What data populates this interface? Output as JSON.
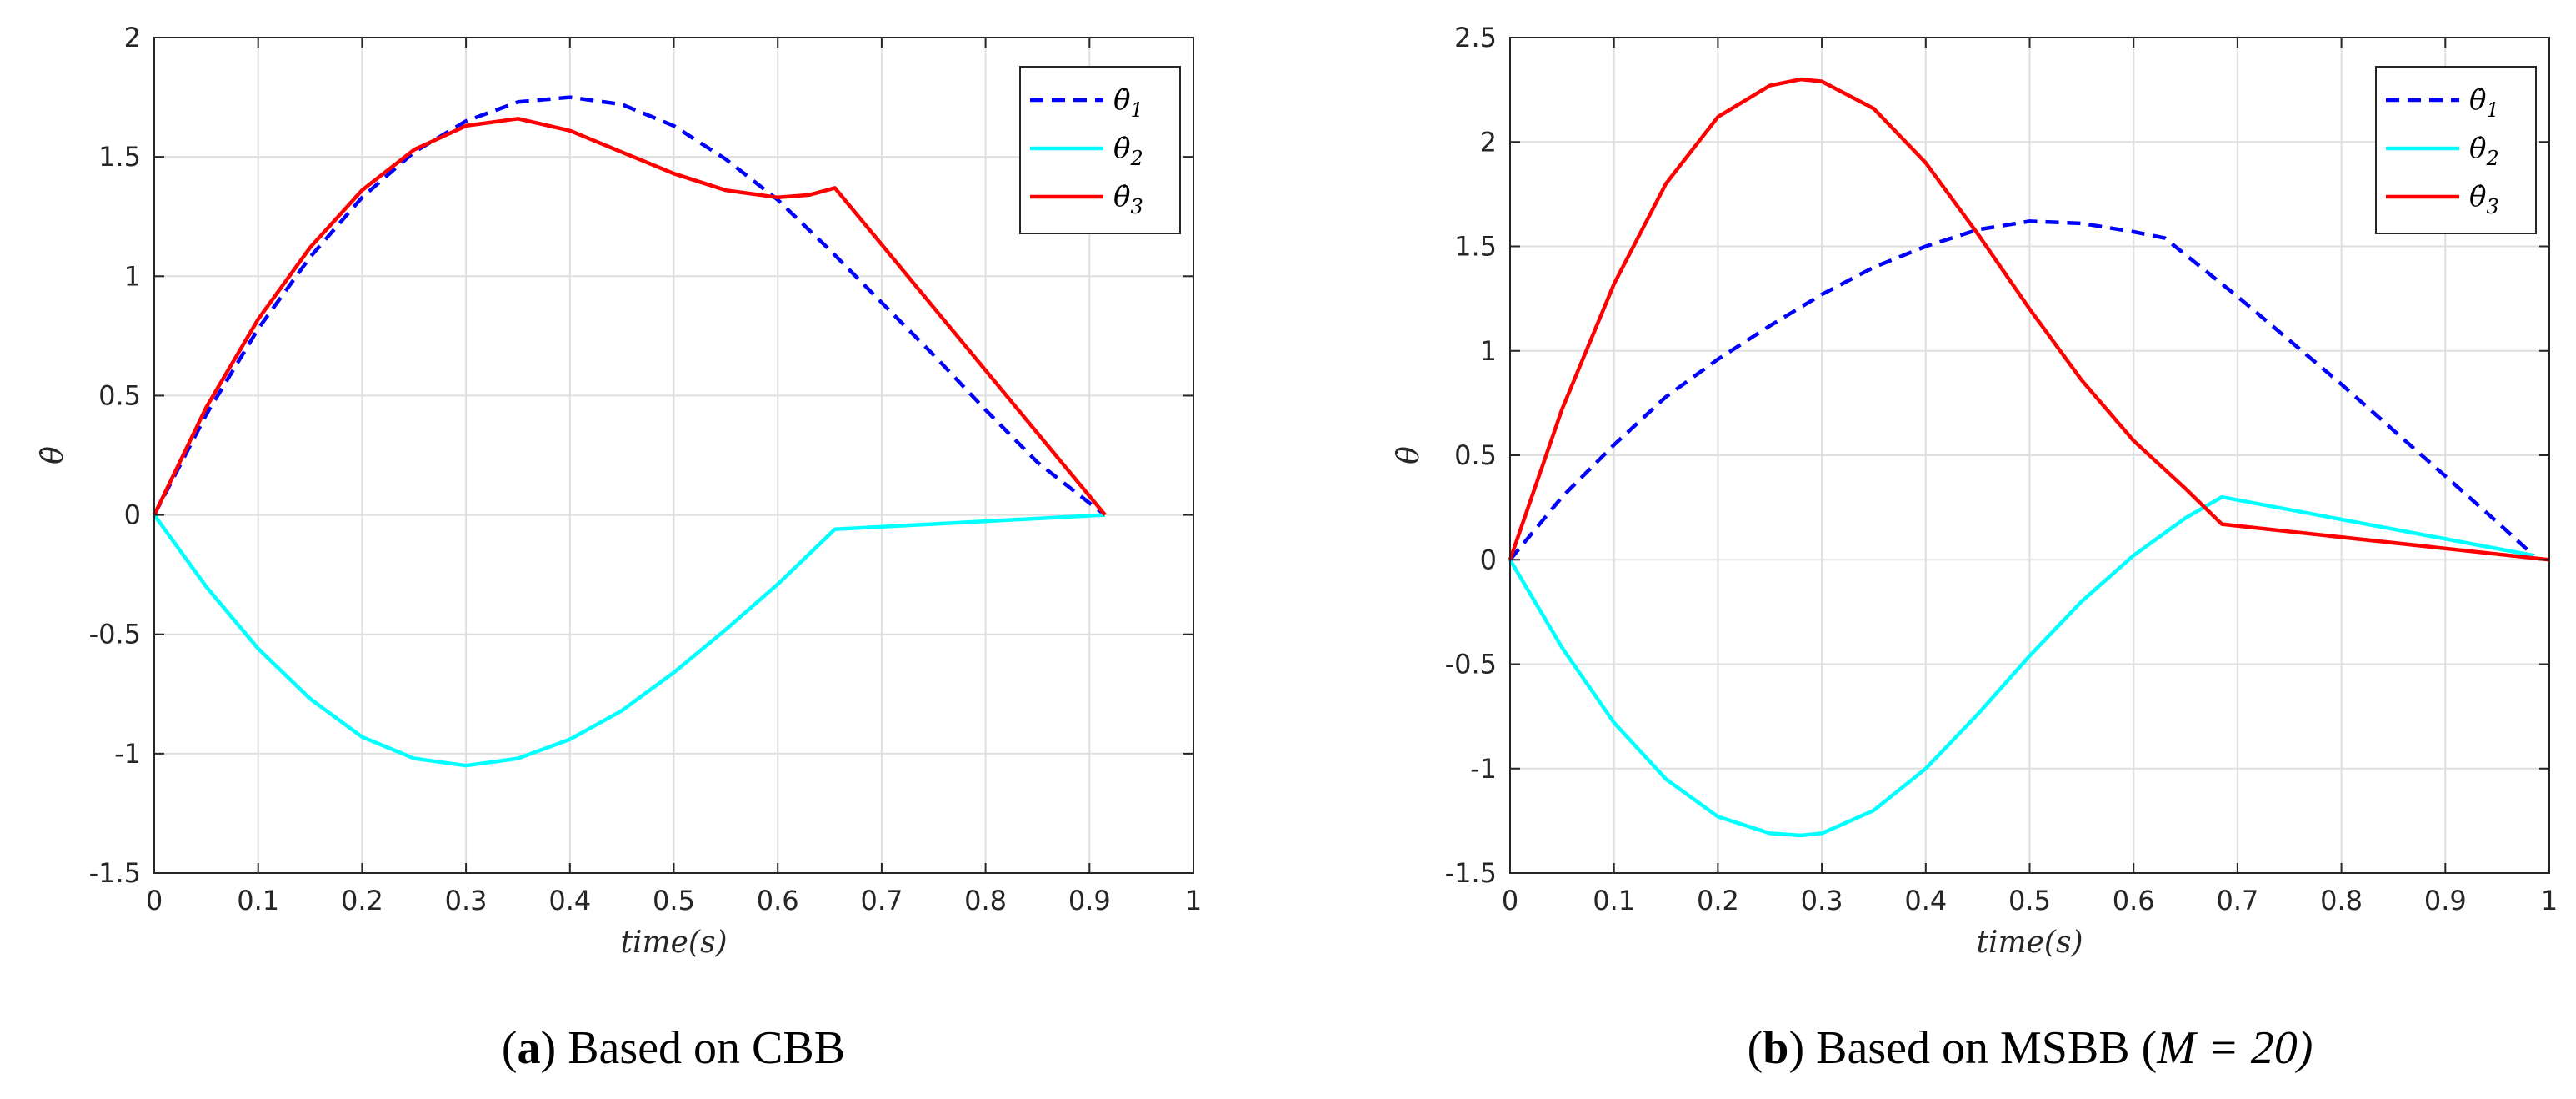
{
  "chart_data": [
    {
      "type": "line",
      "panel_label": "a",
      "caption": "Based on CBB",
      "caption_suffix": "",
      "xlabel": "time(s)",
      "ylabel": "θ̇",
      "xlim": [
        0,
        1
      ],
      "ylim": [
        -1.5,
        2
      ],
      "xticks": [
        0,
        0.1,
        0.2,
        0.3,
        0.4,
        0.5,
        0.6,
        0.7,
        0.8,
        0.9,
        1
      ],
      "xtick_labels": [
        "0",
        "0.1",
        "0.2",
        "0.3",
        "0.4",
        "0.5",
        "0.6",
        "0.7",
        "0.8",
        "0.9",
        "1"
      ],
      "yticks": [
        -1.5,
        -1,
        -0.5,
        0,
        0.5,
        1,
        1.5,
        2
      ],
      "ytick_labels": [
        "-1.5",
        "-1",
        "-0.5",
        "0",
        "0.5",
        "1",
        "1.5",
        "2"
      ],
      "grid": true,
      "legend_position": "top-right",
      "series": [
        {
          "name": "θ̇1",
          "sub": "1",
          "color": "#0000ff",
          "style": "dashed",
          "x": [
            0,
            0.05,
            0.1,
            0.15,
            0.2,
            0.25,
            0.3,
            0.35,
            0.4,
            0.45,
            0.5,
            0.55,
            0.6,
            0.65,
            0.7,
            0.75,
            0.8,
            0.85,
            0.9,
            0.915
          ],
          "y": [
            0,
            0.42,
            0.78,
            1.08,
            1.33,
            1.52,
            1.65,
            1.73,
            1.75,
            1.72,
            1.63,
            1.49,
            1.32,
            1.11,
            0.89,
            0.67,
            0.44,
            0.22,
            0.05,
            0
          ]
        },
        {
          "name": "θ̇2",
          "sub": "2",
          "color": "#00ffff",
          "style": "solid",
          "x": [
            0,
            0.05,
            0.1,
            0.15,
            0.2,
            0.25,
            0.3,
            0.35,
            0.4,
            0.45,
            0.5,
            0.55,
            0.6,
            0.655,
            0.915
          ],
          "y": [
            0,
            -0.3,
            -0.56,
            -0.77,
            -0.93,
            -1.02,
            -1.05,
            -1.02,
            -0.94,
            -0.82,
            -0.66,
            -0.48,
            -0.29,
            -0.06,
            0
          ]
        },
        {
          "name": "θ̇3",
          "sub": "3",
          "color": "#ff0000",
          "style": "solid",
          "x": [
            0,
            0.05,
            0.1,
            0.15,
            0.2,
            0.25,
            0.3,
            0.35,
            0.4,
            0.45,
            0.5,
            0.55,
            0.6,
            0.63,
            0.655,
            0.915
          ],
          "y": [
            0,
            0.45,
            0.82,
            1.12,
            1.36,
            1.53,
            1.63,
            1.66,
            1.61,
            1.52,
            1.43,
            1.36,
            1.33,
            1.34,
            1.37,
            0
          ]
        }
      ]
    },
    {
      "type": "line",
      "panel_label": "b",
      "caption": "Based on MSBB (",
      "caption_suffix": "M = 20)",
      "xlabel": "time(s)",
      "ylabel": "θ̇",
      "xlim": [
        0,
        1
      ],
      "ylim": [
        -1.5,
        2.5
      ],
      "xticks": [
        0,
        0.1,
        0.2,
        0.3,
        0.4,
        0.5,
        0.6,
        0.7,
        0.8,
        0.9,
        1
      ],
      "xtick_labels": [
        "0",
        "0.1",
        "0.2",
        "0.3",
        "0.4",
        "0.5",
        "0.6",
        "0.7",
        "0.8",
        "0.9",
        "1"
      ],
      "yticks": [
        -1.5,
        -1,
        -0.5,
        0,
        0.5,
        1,
        1.5,
        2,
        2.5
      ],
      "ytick_labels": [
        "-1.5",
        "-1",
        "-0.5",
        "0",
        "0.5",
        "1",
        "1.5",
        "2",
        "2.5"
      ],
      "grid": true,
      "legend_position": "top-right",
      "series": [
        {
          "name": "θ̇1",
          "sub": "1",
          "color": "#0000ff",
          "style": "dashed",
          "x": [
            0,
            0.05,
            0.1,
            0.15,
            0.2,
            0.25,
            0.3,
            0.35,
            0.4,
            0.45,
            0.5,
            0.55,
            0.6,
            0.63,
            0.7,
            0.75,
            0.8,
            0.85,
            0.9,
            0.95,
            0.985
          ],
          "y": [
            0,
            0.3,
            0.55,
            0.78,
            0.96,
            1.12,
            1.27,
            1.4,
            1.5,
            1.58,
            1.62,
            1.61,
            1.57,
            1.54,
            1.26,
            1.05,
            0.84,
            0.62,
            0.4,
            0.18,
            0.02
          ]
        },
        {
          "name": "θ̇2",
          "sub": "2",
          "color": "#00ffff",
          "style": "solid",
          "x": [
            0,
            0.05,
            0.1,
            0.15,
            0.2,
            0.25,
            0.28,
            0.3,
            0.35,
            0.4,
            0.45,
            0.5,
            0.55,
            0.6,
            0.65,
            0.685,
            0.985
          ],
          "y": [
            0,
            -0.42,
            -0.78,
            -1.05,
            -1.23,
            -1.31,
            -1.32,
            -1.31,
            -1.2,
            -1.0,
            -0.74,
            -0.46,
            -0.2,
            0.02,
            0.2,
            0.3,
            0.02
          ]
        },
        {
          "name": "θ̇3",
          "sub": "3",
          "color": "#ff0000",
          "style": "solid",
          "x": [
            0,
            0.05,
            0.1,
            0.15,
            0.2,
            0.25,
            0.28,
            0.3,
            0.35,
            0.4,
            0.45,
            0.5,
            0.55,
            0.6,
            0.65,
            0.685,
            1.0
          ],
          "y": [
            0,
            0.72,
            1.32,
            1.8,
            2.12,
            2.27,
            2.3,
            2.29,
            2.16,
            1.9,
            1.56,
            1.2,
            0.86,
            0.57,
            0.34,
            0.17,
            0
          ]
        }
      ]
    }
  ]
}
